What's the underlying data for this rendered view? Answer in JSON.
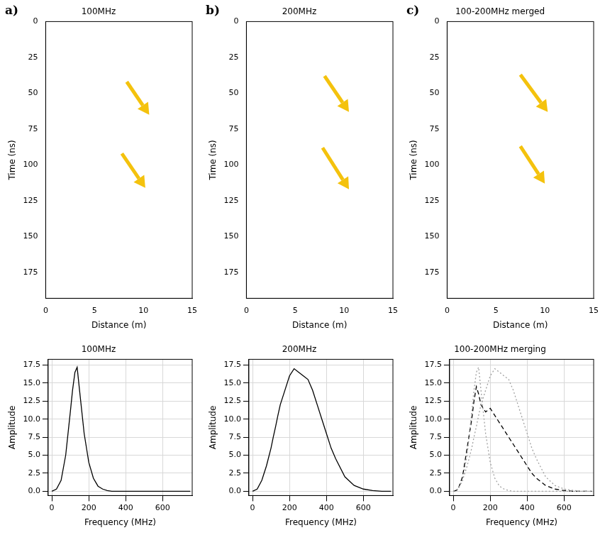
{
  "chart_data": [
    {
      "type": "radargram",
      "panel": "a)",
      "title": "100MHz",
      "x_label": "Distance (m)",
      "y_label": "Time (ns)",
      "xlim": [
        0,
        15
      ],
      "xticks": [
        0,
        5,
        10,
        15
      ],
      "ylim": [
        193,
        0
      ],
      "yticks": [
        0,
        25,
        50,
        75,
        100,
        125,
        150,
        175
      ],
      "grid": false,
      "annotations": [
        {
          "type": "arrow",
          "from": [
            8.3,
            42
          ],
          "to": [
            10.6,
            65
          ],
          "color": "#f4c20d"
        },
        {
          "type": "arrow",
          "from": [
            7.8,
            92
          ],
          "to": [
            10.2,
            116
          ],
          "color": "#f4c20d"
        }
      ]
    },
    {
      "type": "radargram",
      "panel": "b)",
      "title": "200MHz",
      "x_label": "Distance (m)",
      "y_label": "Time (ns)",
      "xlim": [
        0,
        15
      ],
      "xticks": [
        0,
        5,
        10,
        15
      ],
      "ylim": [
        193,
        0
      ],
      "yticks": [
        0,
        25,
        50,
        75,
        100,
        125,
        150,
        175
      ],
      "grid": false,
      "annotations": [
        {
          "type": "arrow",
          "from": [
            8.0,
            38
          ],
          "to": [
            10.5,
            63
          ],
          "color": "#f4c20d"
        },
        {
          "type": "arrow",
          "from": [
            7.8,
            88
          ],
          "to": [
            10.5,
            117
          ],
          "color": "#f4c20d"
        }
      ]
    },
    {
      "type": "radargram",
      "panel": "c)",
      "title": "100-200MHz merged",
      "x_label": "Distance (m)",
      "y_label": "Time (ns)",
      "xlim": [
        0,
        15
      ],
      "xticks": [
        0,
        5,
        10,
        15
      ],
      "ylim": [
        193,
        0
      ],
      "yticks": [
        0,
        25,
        50,
        75,
        100,
        125,
        150,
        175
      ],
      "grid": false,
      "annotations": [
        {
          "type": "arrow",
          "from": [
            7.5,
            37
          ],
          "to": [
            10.3,
            63
          ],
          "color": "#f4c20d"
        },
        {
          "type": "arrow",
          "from": [
            7.5,
            87
          ],
          "to": [
            10.0,
            113
          ],
          "color": "#f4c20d"
        }
      ]
    },
    {
      "type": "line",
      "title": "100MHz",
      "x_label": "Frequency (MHz)",
      "y_label": "Amplitude",
      "xlim": [
        -20,
        760
      ],
      "xticks": [
        0,
        200,
        400,
        600
      ],
      "ylim": [
        -0.6,
        18.3
      ],
      "yticks": [
        {
          "value": 0,
          "label": "0.0"
        },
        2.5,
        {
          "value": 5,
          "label": "5.0"
        },
        7.5,
        {
          "value": 10,
          "label": "10.0"
        },
        12.5,
        {
          "value": 15,
          "label": "15.0"
        },
        17.5
      ],
      "grid": true,
      "color": "#000000",
      "line_style": "solid",
      "x": [
        0,
        25,
        50,
        75,
        100,
        112,
        125,
        137,
        150,
        175,
        200,
        225,
        250,
        275,
        300,
        325,
        350,
        375,
        400,
        425,
        450,
        500,
        550,
        600,
        650,
        700,
        750
      ],
      "values": [
        0,
        0.3,
        1.5,
        5,
        11,
        14,
        16.5,
        17.2,
        14,
        8,
        4,
        1.8,
        0.7,
        0.3,
        0.1,
        0,
        0,
        0,
        0,
        0,
        0,
        0,
        0,
        0,
        0,
        0,
        0
      ]
    },
    {
      "type": "line",
      "title": "200MHz",
      "x_label": "Frequency (MHz)",
      "y_label": "Amplitude",
      "xlim": [
        -20,
        760
      ],
      "xticks": [
        0,
        200,
        400,
        600
      ],
      "ylim": [
        -0.6,
        18.3
      ],
      "yticks": [
        {
          "value": 0,
          "label": "0.0"
        },
        2.5,
        {
          "value": 5,
          "label": "5.0"
        },
        7.5,
        {
          "value": 10,
          "label": "10.0"
        },
        12.5,
        {
          "value": 15,
          "label": "15.0"
        },
        17.5
      ],
      "grid": true,
      "color": "#000000",
      "line_style": "solid",
      "x": [
        0,
        25,
        50,
        75,
        100,
        112,
        125,
        137,
        150,
        175,
        200,
        225,
        250,
        275,
        300,
        325,
        350,
        375,
        400,
        425,
        450,
        500,
        550,
        600,
        650,
        700,
        750
      ],
      "values": [
        0,
        0.3,
        1.5,
        3.5,
        6,
        7.5,
        9,
        10.5,
        12,
        14,
        16,
        17,
        16.5,
        16,
        15.5,
        14,
        12,
        10,
        8,
        6,
        4.5,
        2,
        0.8,
        0.3,
        0.1,
        0,
        0
      ]
    },
    {
      "type": "line",
      "title": "100-200MHz merging",
      "x_label": "Frequency (MHz)",
      "y_label": "Amplitude",
      "xlim": [
        -20,
        760
      ],
      "xticks": [
        0,
        200,
        400,
        600
      ],
      "ylim": [
        -0.6,
        18.3
      ],
      "yticks": [
        {
          "value": 0,
          "label": "0.0"
        },
        2.5,
        {
          "value": 5,
          "label": "5.0"
        },
        7.5,
        {
          "value": 10,
          "label": "10.0"
        },
        12.5,
        {
          "value": 15,
          "label": "15.0"
        },
        17.5
      ],
      "grid": true,
      "x": [
        0,
        25,
        50,
        75,
        100,
        112,
        125,
        137,
        150,
        175,
        200,
        225,
        250,
        275,
        300,
        325,
        350,
        375,
        400,
        425,
        450,
        500,
        550,
        600,
        650,
        700,
        750
      ],
      "series": [
        {
          "color": "#a0a0a0",
          "line_style": "dotted",
          "values": [
            0,
            0.3,
            1.5,
            5,
            11,
            14,
            16.5,
            17.2,
            14,
            8,
            4,
            1.8,
            0.7,
            0.3,
            0.1,
            0,
            0,
            0,
            0,
            0,
            0,
            0,
            0,
            0,
            0,
            0,
            0
          ]
        },
        {
          "color": "#a0a0a0",
          "line_style": "dotted",
          "values": [
            0,
            0.3,
            1.5,
            3.5,
            6,
            7.5,
            9,
            10.5,
            12,
            14,
            16,
            17,
            16.5,
            16,
            15.5,
            14,
            12,
            10,
            8,
            6,
            4.5,
            2,
            0.8,
            0.3,
            0.1,
            0,
            0
          ]
        },
        {
          "color": "#000000",
          "line_style": "dashed",
          "values": [
            0,
            0.2,
            2,
            6,
            10,
            12.5,
            14.5,
            13.5,
            12,
            11,
            11.5,
            10.5,
            9.5,
            8.5,
            7.5,
            6.5,
            5.5,
            4.5,
            3.5,
            2.5,
            1.8,
            0.8,
            0.3,
            0.1,
            0,
            0,
            0
          ]
        }
      ]
    }
  ]
}
